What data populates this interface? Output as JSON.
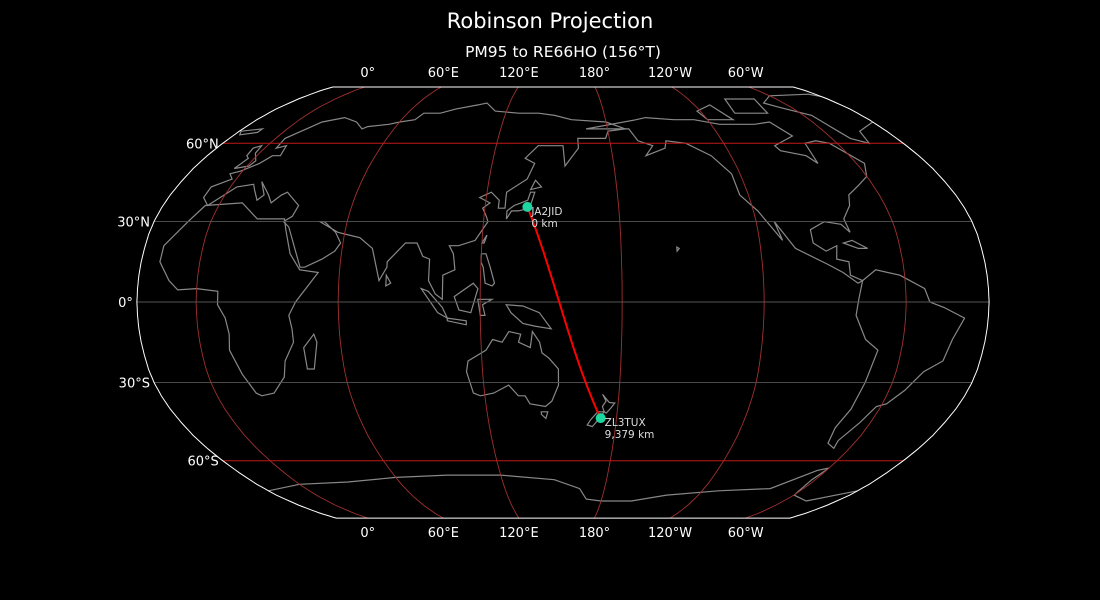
{
  "title": "Robinson Projection",
  "subtitle": "PM95 to RE66HO (156°T)",
  "colors": {
    "background": "#000000",
    "coastline": "#888888",
    "path": "#ff0000",
    "station": "#1ed6a0",
    "meridian": "#a03030",
    "parallel_60": "#c01818",
    "parallel_minor": "#555555",
    "outline": "#ffffff"
  },
  "lon_labels": [
    {
      "lon": 0,
      "label": "0°"
    },
    {
      "lon": 60,
      "label": "60°E"
    },
    {
      "lon": 120,
      "label": "120°E"
    },
    {
      "lon": 180,
      "label": "180°"
    },
    {
      "lon": 240,
      "label": "120°W"
    },
    {
      "lon": 300,
      "label": "60°W"
    }
  ],
  "lat_labels": [
    {
      "lat": 60,
      "label": "60°N"
    },
    {
      "lat": 30,
      "label": "30°N"
    },
    {
      "lat": 0,
      "label": "0°"
    },
    {
      "lat": -30,
      "label": "30°S"
    },
    {
      "lat": -60,
      "label": "60°S"
    }
  ],
  "stations": [
    {
      "name": "JA2JID",
      "distance": "0 km",
      "lat": 35.5,
      "lon": 139.0
    },
    {
      "name": "ZL3TUX",
      "distance": "9,379 km",
      "lat": -43.4,
      "lon": 172.6
    }
  ]
}
